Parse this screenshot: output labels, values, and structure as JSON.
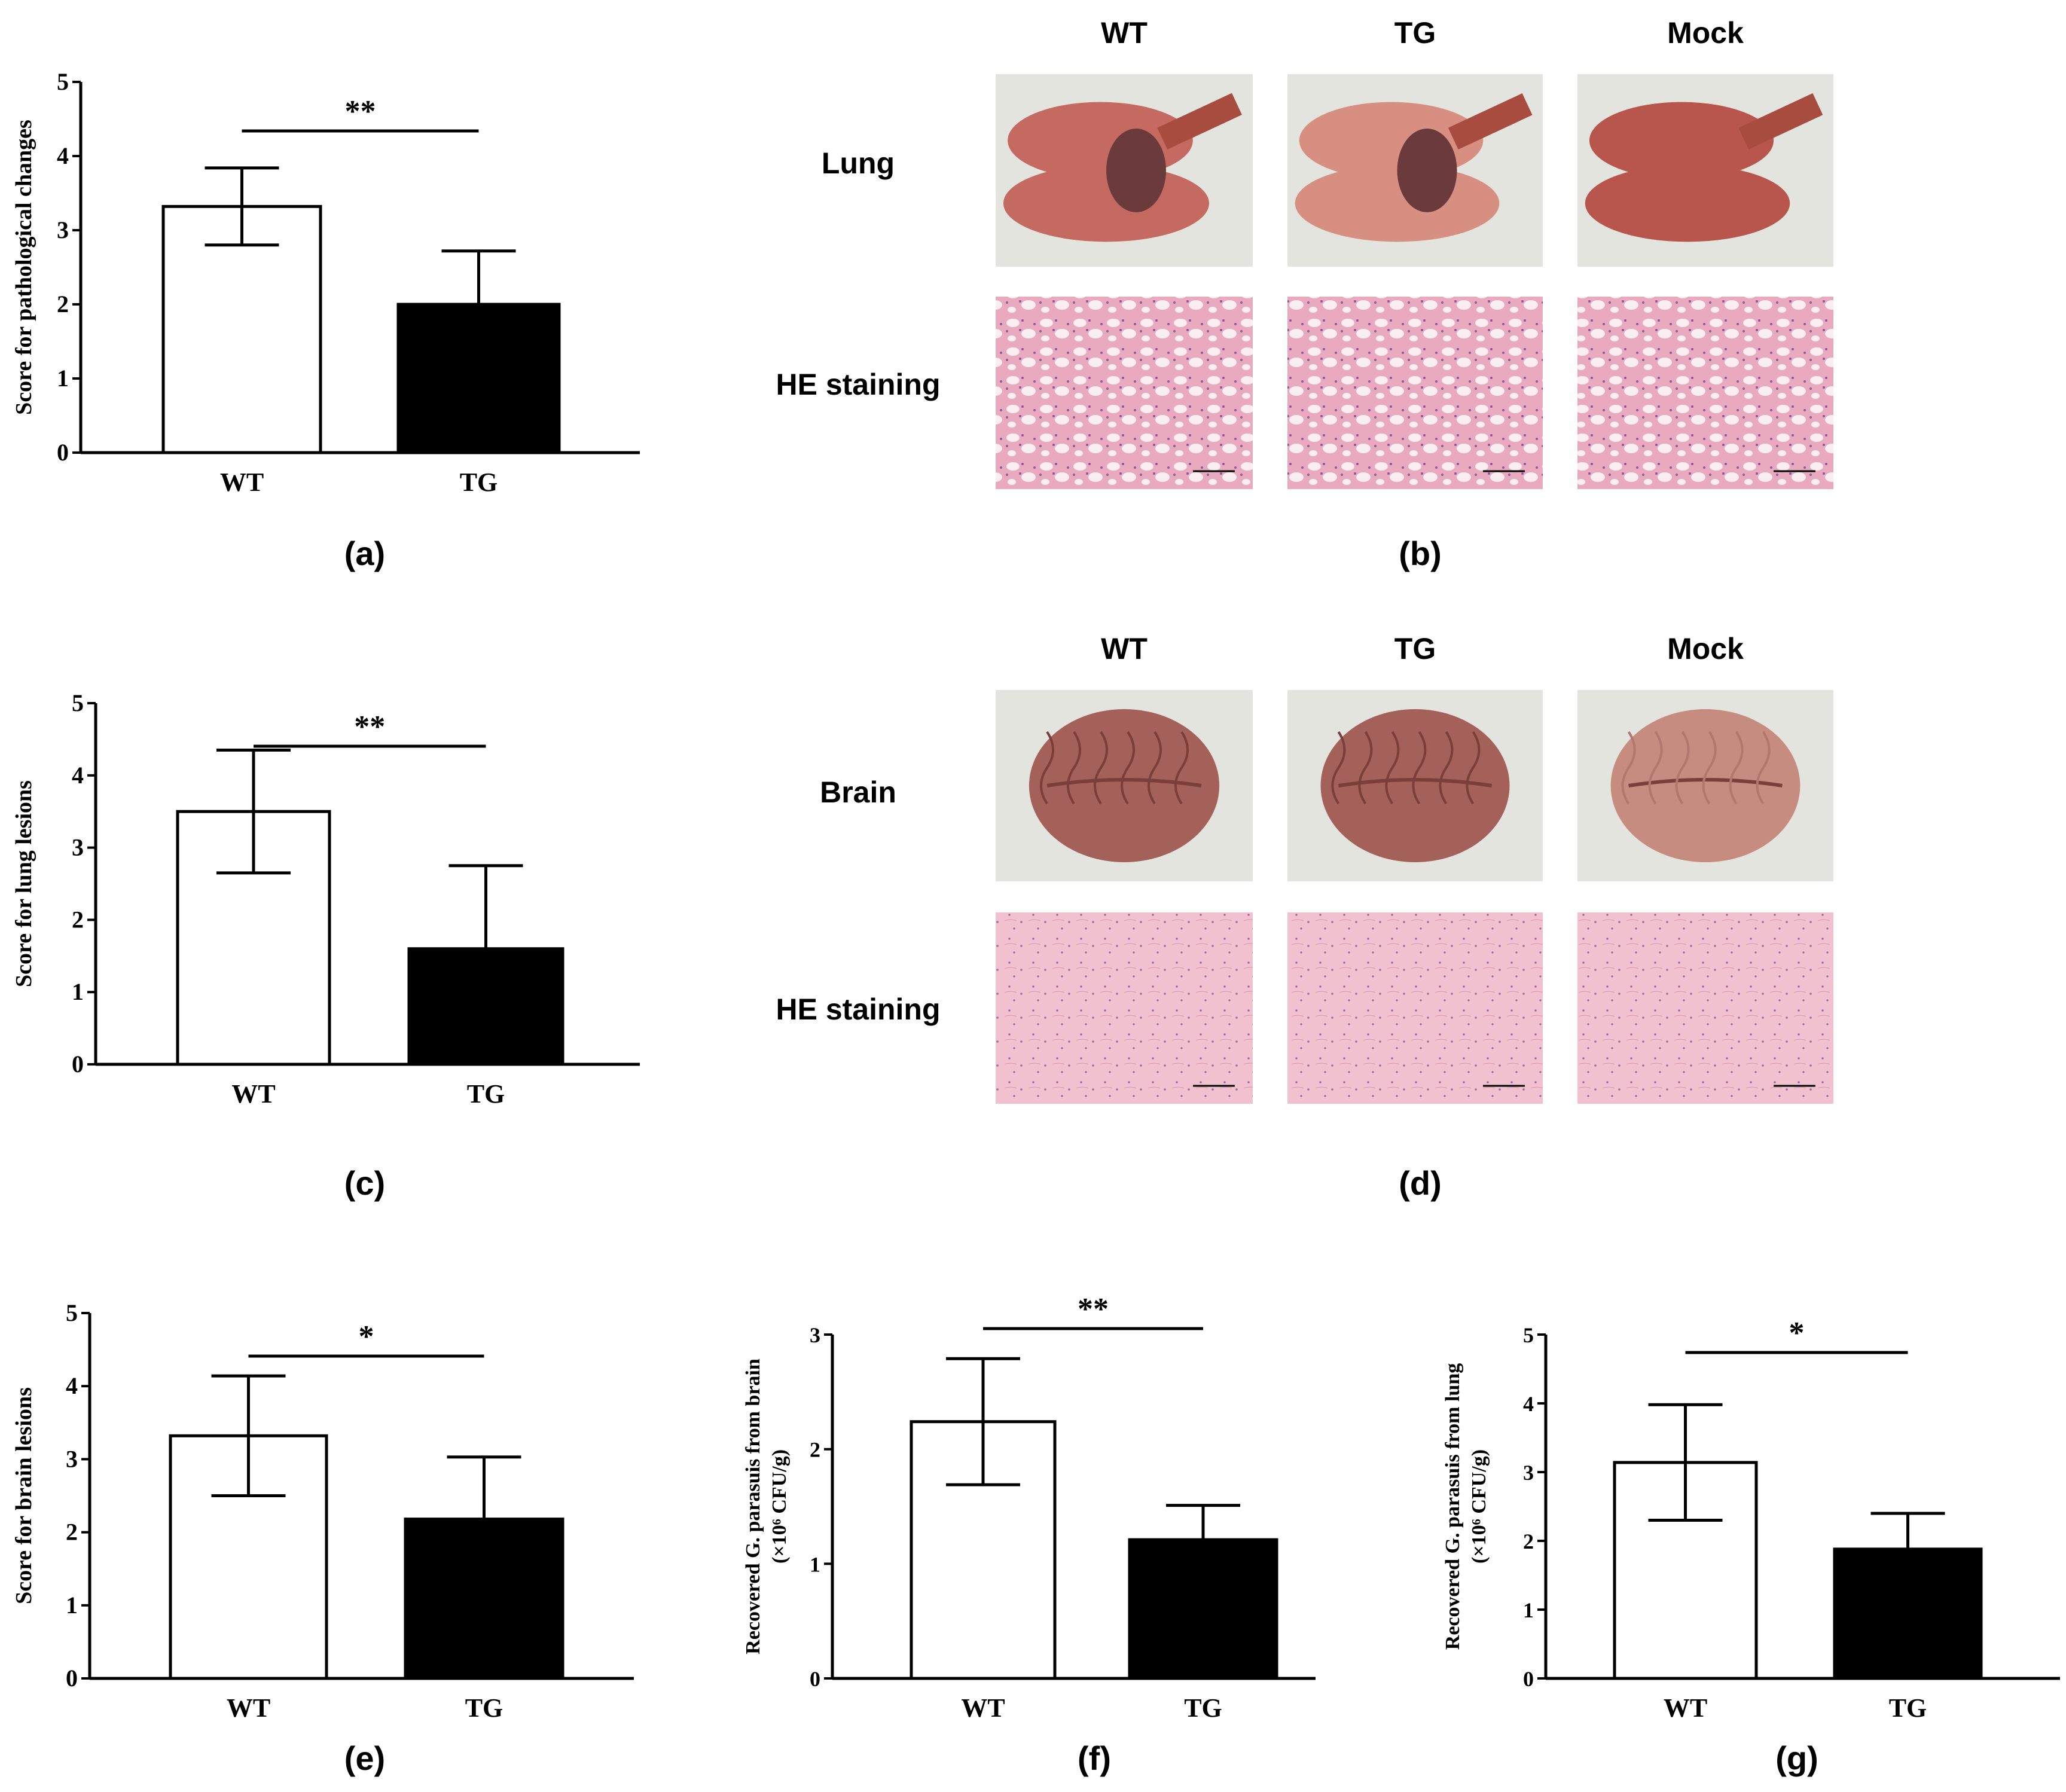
{
  "chart_data": [
    {
      "panel": "(a)",
      "type": "bar",
      "categories": [
        "WT",
        "TG"
      ],
      "values": [
        3.32,
        2.0
      ],
      "errors": [
        0.52,
        0.72
      ],
      "ylabel": "Score for pathological changes",
      "ylim": [
        0,
        5
      ],
      "yticks": [
        "0",
        "1",
        "2",
        "3",
        "4",
        "5"
      ],
      "significance": "**"
    },
    {
      "panel": "(c)",
      "type": "bar",
      "categories": [
        "WT",
        "TG"
      ],
      "values": [
        3.5,
        1.6
      ],
      "errors": [
        0.85,
        1.15
      ],
      "ylabel": "Score for lung lesions",
      "ylim": [
        0,
        5
      ],
      "yticks": [
        "0",
        "1",
        "2",
        "3",
        "4",
        "5"
      ],
      "significance": "**"
    },
    {
      "panel": "(e)",
      "type": "bar",
      "categories": [
        "WT",
        "TG"
      ],
      "values": [
        3.32,
        2.18
      ],
      "errors": [
        0.82,
        0.85
      ],
      "ylabel": "Score for brain lesions",
      "ylim": [
        0,
        5
      ],
      "yticks": [
        "0",
        "1",
        "2",
        "3",
        "4",
        "5"
      ],
      "significance": "*"
    },
    {
      "panel": "(f)",
      "type": "bar",
      "categories": [
        "WT",
        "TG"
      ],
      "values": [
        2.24,
        1.21
      ],
      "errors": [
        0.55,
        0.3
      ],
      "ylabel_lines": [
        "Recovered G. parasuis  from brain",
        "(×10⁶ CFU/g)"
      ],
      "ylim": [
        0,
        3
      ],
      "yticks": [
        "0",
        "1",
        "2",
        "3"
      ],
      "significance": "**"
    },
    {
      "panel": "(g)",
      "type": "bar",
      "categories": [
        "WT",
        "TG"
      ],
      "values": [
        3.14,
        1.88
      ],
      "errors": [
        0.84,
        0.52
      ],
      "ylabel_lines": [
        "Recovered G. parasuis  from lung",
        "(×10⁶ CFU/g)"
      ],
      "ylim": [
        0,
        5
      ],
      "yticks": [
        "0",
        "1",
        "2",
        "3",
        "4",
        "5"
      ],
      "significance": "*"
    }
  ],
  "photo_panels": [
    {
      "panel": "(b)",
      "columns": [
        "WT",
        "TG",
        "Mock"
      ],
      "rows": [
        "Lung",
        "HE staining"
      ]
    },
    {
      "panel": "(d)",
      "columns": [
        "WT",
        "TG",
        "Mock"
      ],
      "rows": [
        "Brain",
        "HE staining"
      ]
    }
  ],
  "colors": {
    "wt_bar": "#ffffff",
    "tg_bar": "#000000",
    "axis": "#000000",
    "lung_tissue": "#c0605a",
    "brain_tissue": "#b06a62",
    "he_stain": "#f0c2cf"
  }
}
